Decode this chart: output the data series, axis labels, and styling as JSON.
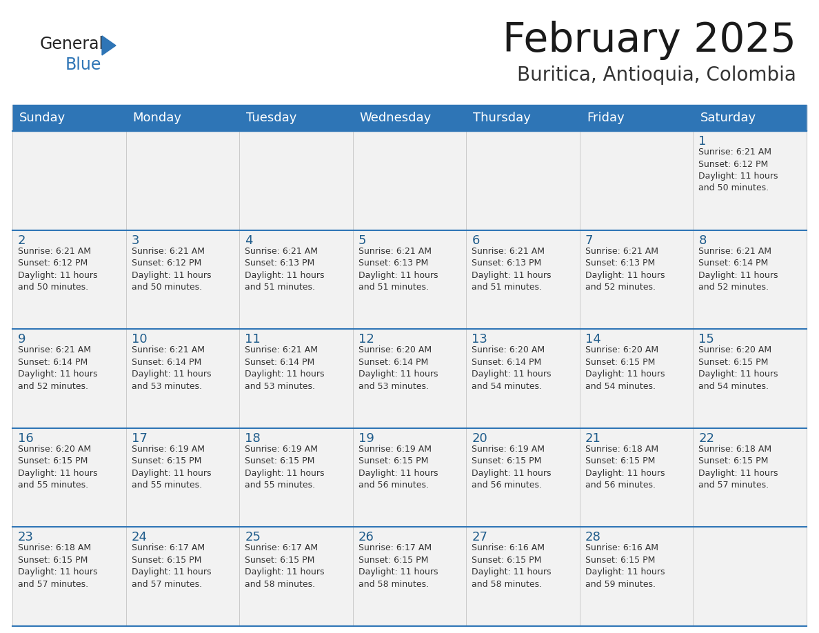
{
  "title": "February 2025",
  "subtitle": "Buritica, Antioquia, Colombia",
  "header_bg": "#336791",
  "header_bg2": "#2E75B6",
  "header_text_color": "#FFFFFF",
  "cell_bg": "#F2F2F2",
  "title_color": "#1a1a1a",
  "subtitle_color": "#333333",
  "day_number_color": "#1F5C8B",
  "cell_text_color": "#333333",
  "border_color": "#2E75B6",
  "day_names": [
    "Sunday",
    "Monday",
    "Tuesday",
    "Wednesday",
    "Thursday",
    "Friday",
    "Saturday"
  ],
  "calendar": [
    [
      null,
      null,
      null,
      null,
      null,
      null,
      {
        "day": 1,
        "sunrise": "6:21 AM",
        "sunset": "6:12 PM",
        "daylight": "11 hours\nand 50 minutes."
      }
    ],
    [
      {
        "day": 2,
        "sunrise": "6:21 AM",
        "sunset": "6:12 PM",
        "daylight": "11 hours\nand 50 minutes."
      },
      {
        "day": 3,
        "sunrise": "6:21 AM",
        "sunset": "6:12 PM",
        "daylight": "11 hours\nand 50 minutes."
      },
      {
        "day": 4,
        "sunrise": "6:21 AM",
        "sunset": "6:13 PM",
        "daylight": "11 hours\nand 51 minutes."
      },
      {
        "day": 5,
        "sunrise": "6:21 AM",
        "sunset": "6:13 PM",
        "daylight": "11 hours\nand 51 minutes."
      },
      {
        "day": 6,
        "sunrise": "6:21 AM",
        "sunset": "6:13 PM",
        "daylight": "11 hours\nand 51 minutes."
      },
      {
        "day": 7,
        "sunrise": "6:21 AM",
        "sunset": "6:13 PM",
        "daylight": "11 hours\nand 52 minutes."
      },
      {
        "day": 8,
        "sunrise": "6:21 AM",
        "sunset": "6:14 PM",
        "daylight": "11 hours\nand 52 minutes."
      }
    ],
    [
      {
        "day": 9,
        "sunrise": "6:21 AM",
        "sunset": "6:14 PM",
        "daylight": "11 hours\nand 52 minutes."
      },
      {
        "day": 10,
        "sunrise": "6:21 AM",
        "sunset": "6:14 PM",
        "daylight": "11 hours\nand 53 minutes."
      },
      {
        "day": 11,
        "sunrise": "6:21 AM",
        "sunset": "6:14 PM",
        "daylight": "11 hours\nand 53 minutes."
      },
      {
        "day": 12,
        "sunrise": "6:20 AM",
        "sunset": "6:14 PM",
        "daylight": "11 hours\nand 53 minutes."
      },
      {
        "day": 13,
        "sunrise": "6:20 AM",
        "sunset": "6:14 PM",
        "daylight": "11 hours\nand 54 minutes."
      },
      {
        "day": 14,
        "sunrise": "6:20 AM",
        "sunset": "6:15 PM",
        "daylight": "11 hours\nand 54 minutes."
      },
      {
        "day": 15,
        "sunrise": "6:20 AM",
        "sunset": "6:15 PM",
        "daylight": "11 hours\nand 54 minutes."
      }
    ],
    [
      {
        "day": 16,
        "sunrise": "6:20 AM",
        "sunset": "6:15 PM",
        "daylight": "11 hours\nand 55 minutes."
      },
      {
        "day": 17,
        "sunrise": "6:19 AM",
        "sunset": "6:15 PM",
        "daylight": "11 hours\nand 55 minutes."
      },
      {
        "day": 18,
        "sunrise": "6:19 AM",
        "sunset": "6:15 PM",
        "daylight": "11 hours\nand 55 minutes."
      },
      {
        "day": 19,
        "sunrise": "6:19 AM",
        "sunset": "6:15 PM",
        "daylight": "11 hours\nand 56 minutes."
      },
      {
        "day": 20,
        "sunrise": "6:19 AM",
        "sunset": "6:15 PM",
        "daylight": "11 hours\nand 56 minutes."
      },
      {
        "day": 21,
        "sunrise": "6:18 AM",
        "sunset": "6:15 PM",
        "daylight": "11 hours\nand 56 minutes."
      },
      {
        "day": 22,
        "sunrise": "6:18 AM",
        "sunset": "6:15 PM",
        "daylight": "11 hours\nand 57 minutes."
      }
    ],
    [
      {
        "day": 23,
        "sunrise": "6:18 AM",
        "sunset": "6:15 PM",
        "daylight": "11 hours\nand 57 minutes."
      },
      {
        "day": 24,
        "sunrise": "6:17 AM",
        "sunset": "6:15 PM",
        "daylight": "11 hours\nand 57 minutes."
      },
      {
        "day": 25,
        "sunrise": "6:17 AM",
        "sunset": "6:15 PM",
        "daylight": "11 hours\nand 58 minutes."
      },
      {
        "day": 26,
        "sunrise": "6:17 AM",
        "sunset": "6:15 PM",
        "daylight": "11 hours\nand 58 minutes."
      },
      {
        "day": 27,
        "sunrise": "6:16 AM",
        "sunset": "6:15 PM",
        "daylight": "11 hours\nand 58 minutes."
      },
      {
        "day": 28,
        "sunrise": "6:16 AM",
        "sunset": "6:15 PM",
        "daylight": "11 hours\nand 59 minutes."
      },
      null
    ]
  ]
}
